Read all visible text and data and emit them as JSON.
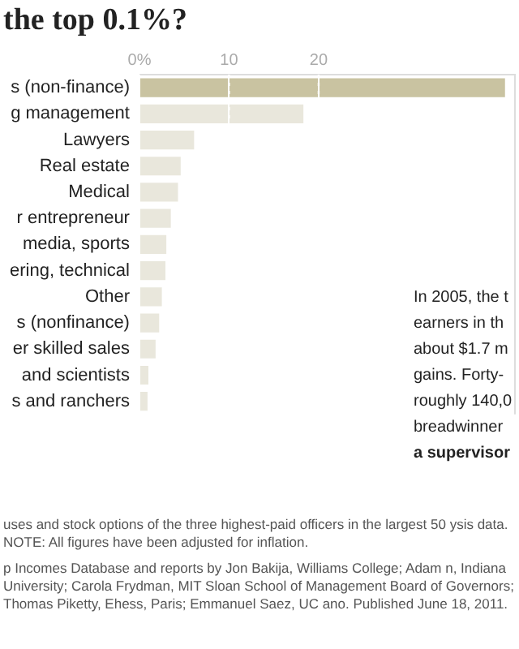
{
  "chart_data": {
    "type": "bar",
    "orientation": "horizontal",
    "title": "the top 0.1%?",
    "categories": [
      "s (non-finance)",
      "g management",
      "Lawyers",
      "Real estate",
      "Medical",
      "r entrepreneur",
      "media, sports",
      "ering, technical",
      "Other",
      "s (nonfinance)",
      "er skilled sales",
      "and scientists",
      "s and ranchers"
    ],
    "values": [
      40.8,
      18.3,
      6.1,
      4.6,
      4.3,
      3.5,
      3.0,
      2.9,
      2.5,
      2.2,
      1.8,
      1.0,
      0.9
    ],
    "colors": [
      "#c9c3a1",
      "#e9e7dc",
      "#e9e7dc",
      "#e9e7dc",
      "#e9e7dc",
      "#e9e7dc",
      "#e9e7dc",
      "#e9e7dc",
      "#e9e7dc",
      "#e9e7dc",
      "#e9e7dc",
      "#e9e7dc",
      "#e9e7dc"
    ],
    "xlim": [
      0,
      42
    ],
    "xticks": [
      {
        "value": 0,
        "label": "0%"
      },
      10,
      20
    ],
    "grid": "x",
    "legend": false,
    "annotations": [
      "In 2005, the t",
      "earners in th",
      "about $1.7 m",
      "gains. Forty-",
      "roughly 140,0",
      "breadwinner",
      "a supervisor",
      "uses and stock options of the three highest-paid officers in the largest 50 ysis data. NOTE: All figures have been adjusted for inflation.",
      "p Incomes Database and reports by Jon Bakija, Williams College; Adam n, Indiana University; Carola Frydman, MIT Sloan School of Management Board of Governors; Thomas Piketty, Ehess, Paris; Emmanuel Saez, UC ano. Published June 18, 2011."
    ]
  }
}
